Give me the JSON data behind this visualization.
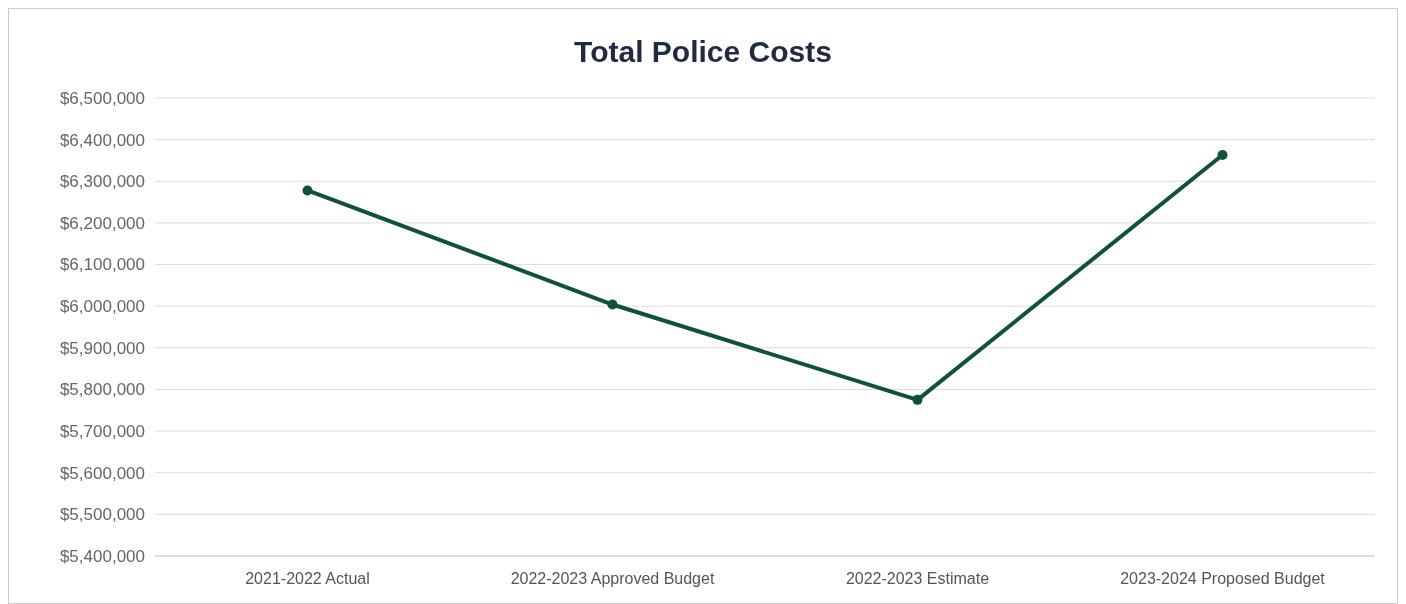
{
  "chart_data": {
    "type": "line",
    "title": "Total Police Costs",
    "categories": [
      "2021-2022 Actual",
      "2022-2023 Approved Budget",
      "2022-2023 Estimate",
      "2023-2024 Proposed Budget"
    ],
    "series": [
      {
        "color": "#0e5334",
        "values": [
          6278000,
          6004000,
          5775000,
          6363000
        ]
      }
    ],
    "ylim": [
      5400000,
      6500000
    ],
    "yticks": [
      {
        "value": 5400000,
        "label": "$5,400,000"
      },
      {
        "value": 5500000,
        "label": "$5,500,000"
      },
      {
        "value": 5600000,
        "label": "$5,600,000"
      },
      {
        "value": 5700000,
        "label": "$5,700,000"
      },
      {
        "value": 5800000,
        "label": "$5,800,000"
      },
      {
        "value": 5900000,
        "label": "$5,900,000"
      },
      {
        "value": 6000000,
        "label": "$6,000,000"
      },
      {
        "value": 6100000,
        "label": "$6,100,000"
      },
      {
        "value": 6200000,
        "label": "$6,200,000"
      },
      {
        "value": 6300000,
        "label": "$6,300,000"
      },
      {
        "value": 6400000,
        "label": "$6,400,000"
      },
      {
        "value": 6500000,
        "label": "$6,500,000"
      }
    ],
    "grid": "y",
    "marker": "circle",
    "line_style": "solid"
  }
}
